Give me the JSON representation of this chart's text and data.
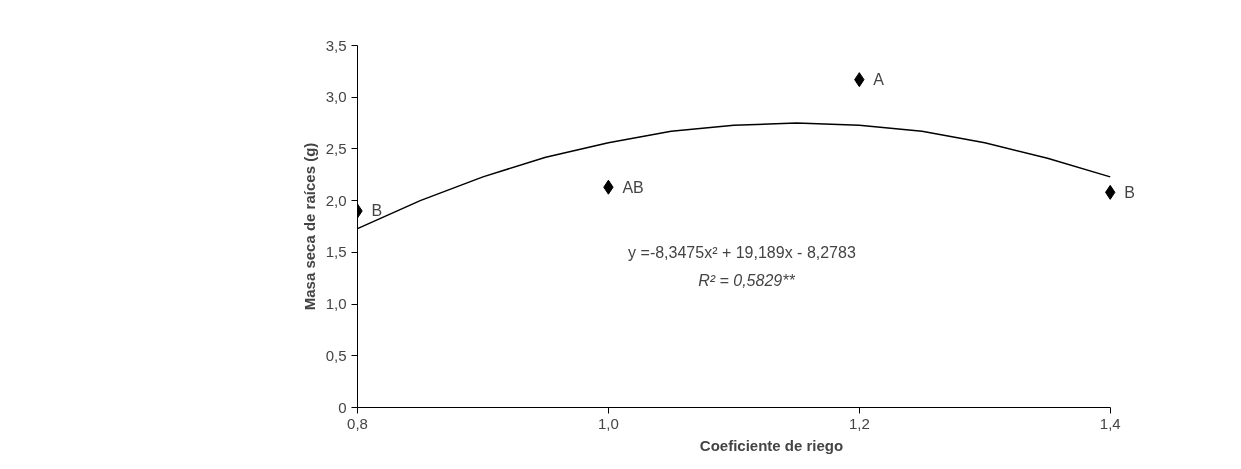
{
  "chart_data": {
    "type": "scatter",
    "xlabel": "Coeficiente de riego",
    "ylabel": "Masa seca de raíces (g)",
    "xlim": [
      0.8,
      1.4
    ],
    "xticks": [
      {
        "value": 0.8,
        "label": "0,8"
      },
      {
        "value": 1.0,
        "label": "1,0"
      },
      {
        "value": 1.2,
        "label": "1,2"
      },
      {
        "value": 1.4,
        "label": "1,4"
      }
    ],
    "ylim": [
      0,
      3.5
    ],
    "yticks": [
      {
        "value": 0,
        "label": "0"
      },
      {
        "value": 0.5,
        "label": "0,5"
      },
      {
        "value": 1.0,
        "label": "1,0"
      },
      {
        "value": 1.5,
        "label": "1,5"
      },
      {
        "value": 2.0,
        "label": "2,0"
      },
      {
        "value": 2.5,
        "label": "2,5"
      },
      {
        "value": 3.0,
        "label": "3,0"
      },
      {
        "value": 3.5,
        "label": "3,5"
      }
    ],
    "grid": false,
    "series": [
      {
        "marker": "diamond",
        "color": "#000000",
        "x": [
          0.8,
          1.0,
          1.2,
          1.4
        ],
        "values": [
          1.9,
          2.13,
          3.17,
          2.08
        ]
      },
      {
        "type": "line",
        "marker": "none",
        "line_style": "solid",
        "color": "#000000",
        "x": [
          0.8,
          0.85,
          0.9,
          0.95,
          1.0,
          1.05,
          1.1,
          1.15,
          1.2,
          1.25,
          1.3,
          1.35,
          1.4
        ],
        "values": [
          1.73,
          2.0,
          2.23,
          2.42,
          2.56,
          2.67,
          2.73,
          2.75,
          2.73,
          2.67,
          2.56,
          2.41,
          2.23
        ]
      }
    ],
    "annotations": [
      {
        "text": "B",
        "x": 0.8,
        "y": 1.9
      },
      {
        "text": "AB",
        "x": 1.0,
        "y": 2.13
      },
      {
        "text": "A",
        "x": 1.2,
        "y": 3.17
      },
      {
        "text": "B",
        "x": 1.4,
        "y": 2.08
      },
      "y =-8,3475x² + 19,189x  -  8,2783",
      "R² = 0,5829**"
    ]
  }
}
